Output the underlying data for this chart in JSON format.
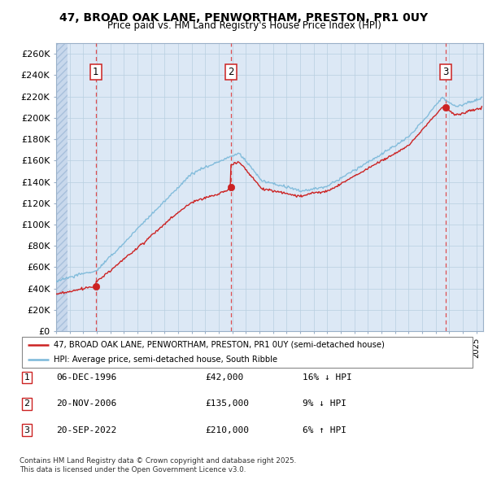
{
  "title_line1": "47, BROAD OAK LANE, PENWORTHAM, PRESTON, PR1 0UY",
  "title_line2": "Price paid vs. HM Land Registry's House Price Index (HPI)",
  "ylabel_ticks": [
    "£0",
    "£20K",
    "£40K",
    "£60K",
    "£80K",
    "£100K",
    "£120K",
    "£140K",
    "£160K",
    "£180K",
    "£200K",
    "£220K",
    "£240K",
    "£260K"
  ],
  "ytick_values": [
    0,
    20000,
    40000,
    60000,
    80000,
    100000,
    120000,
    140000,
    160000,
    180000,
    200000,
    220000,
    240000,
    260000
  ],
  "ylim": [
    0,
    270000
  ],
  "xlim_start": 1994.0,
  "xlim_end": 2025.5,
  "sale_dates": [
    1996.92,
    2006.89,
    2022.72
  ],
  "sale_prices": [
    42000,
    135000,
    210000
  ],
  "sale_labels": [
    "1",
    "2",
    "3"
  ],
  "hpi_color": "#7ab8d9",
  "sale_color": "#cc2222",
  "vline_color": "#dd3333",
  "chart_bg_color": "#dce8f5",
  "hatch_color": "#c5d5e8",
  "grid_color": "#b8cfe0",
  "legend_entries": [
    "47, BROAD OAK LANE, PENWORTHAM, PRESTON, PR1 0UY (semi-detached house)",
    "HPI: Average price, semi-detached house, South Ribble"
  ],
  "table_rows": [
    [
      "1",
      "06-DEC-1996",
      "£42,000",
      "16% ↓ HPI"
    ],
    [
      "2",
      "20-NOV-2006",
      "£135,000",
      "9% ↓ HPI"
    ],
    [
      "3",
      "20-SEP-2022",
      "£210,000",
      "6% ↑ HPI"
    ]
  ],
  "footnote": "Contains HM Land Registry data © Crown copyright and database right 2025.\nThis data is licensed under the Open Government Licence v3.0."
}
